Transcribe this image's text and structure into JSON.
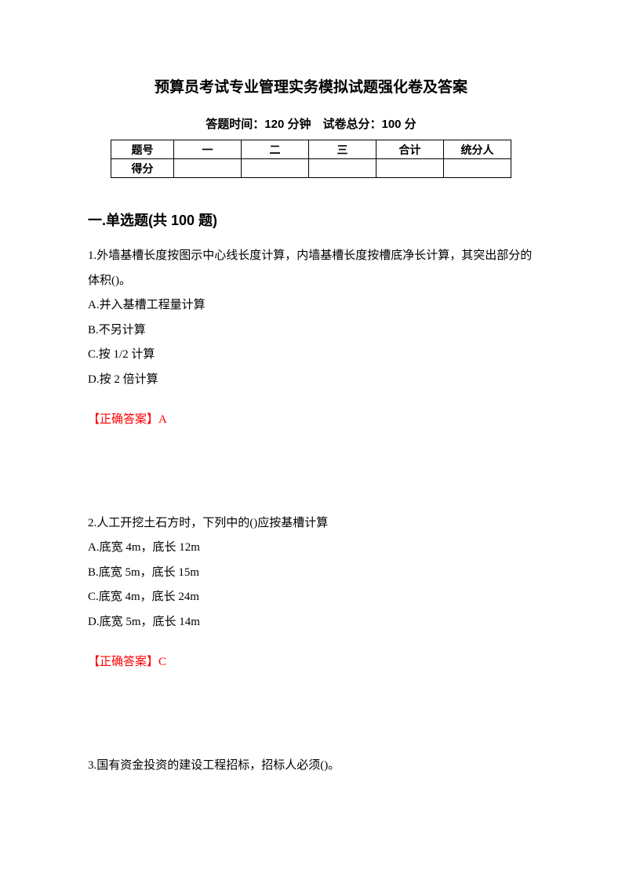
{
  "title": "预算员考试专业管理实务模拟试题强化卷及答案",
  "subtitle": "答题时间：120 分钟 试卷总分：100 分",
  "score_table": {
    "headers": [
      "题号",
      "一",
      "二",
      "三",
      "合计",
      "统分人"
    ],
    "rowlabel": "得分"
  },
  "section": {
    "heading": "一.单选题(共 100 题)"
  },
  "q1": {
    "stem": "1.外墙基槽长度按图示中心线长度计算，内墙基槽长度按槽底净长计算，其突出部分的体积()。",
    "A": "A.并入基槽工程量计算",
    "B": "B.不另计算",
    "C": "C.按 1/2 计算",
    "D": "D.按 2 倍计算",
    "answer_label": "【正确答案】",
    "answer_value": "A"
  },
  "q2": {
    "stem": "2.人工开挖土石方时，下列中的()应按基槽计算",
    "A": "A.底宽 4m，底长 12m",
    "B": "B.底宽 5m，底长 15m",
    "C": "C.底宽 4m，底长 24m",
    "D": "D.底宽 5m，底长 14m",
    "answer_label": "【正确答案】",
    "answer_value": "C"
  },
  "q3": {
    "stem": "3.国有资金投资的建设工程招标，招标人必须()。"
  },
  "colors": {
    "text": "#000000",
    "answer": "#ff0000",
    "background": "#ffffff",
    "table_border": "#000000"
  }
}
